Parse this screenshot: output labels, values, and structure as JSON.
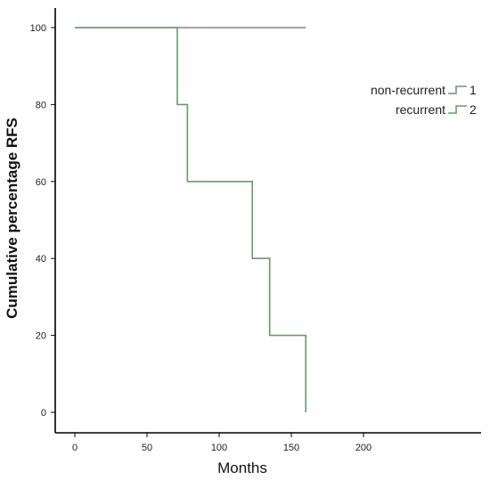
{
  "chart_data": {
    "type": "line",
    "xlabel": "Months",
    "ylabel": "Cumulative percentage RFS",
    "xlim": [
      0,
      200
    ],
    "ylim": [
      0,
      100
    ],
    "xticks": [
      "0",
      "50",
      "100",
      "150",
      "200"
    ],
    "yticks": [
      "0",
      "20",
      "40",
      "60",
      "80",
      "100"
    ],
    "grid": false,
    "legend_placement": "right",
    "series": [
      {
        "name": "non-recurrent",
        "marker_label": "1",
        "color": "#7f8594",
        "step": true,
        "x": [
          0,
          160
        ],
        "y": [
          100,
          100
        ]
      },
      {
        "name": "recurrent",
        "marker_label": "2",
        "color": "#6a9a6a",
        "step": true,
        "x": [
          0,
          71,
          78,
          123,
          135,
          160,
          160
        ],
        "y": [
          100,
          80,
          60,
          40,
          20,
          20,
          0
        ]
      }
    ]
  }
}
